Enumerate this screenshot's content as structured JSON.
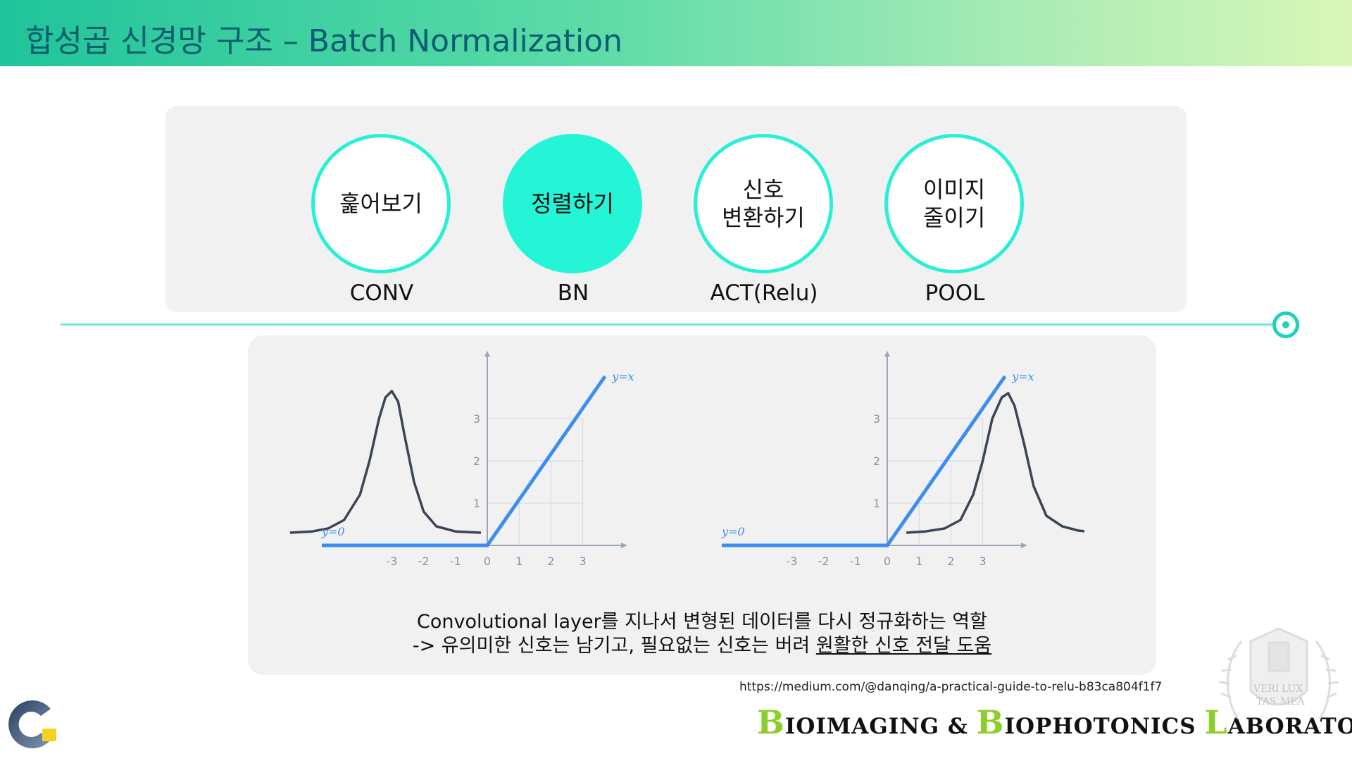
{
  "header": {
    "title": "합성곱 신경망 구조 – Batch Normalization"
  },
  "steps": [
    {
      "text": "훑어보기",
      "label": "CONV",
      "filled": false
    },
    {
      "text": "정렬하기",
      "label": "BN",
      "filled": true
    },
    {
      "text": "신호\n변환하기",
      "label": "ACT(Relu)",
      "filled": false
    },
    {
      "text": "이미지\n줄이기",
      "label": "POOL",
      "filled": false
    }
  ],
  "chart_data": [
    {
      "type": "line",
      "series": [
        {
          "name": "y=x",
          "x": [
            -5.2,
            0,
            3.7
          ],
          "y": [
            0,
            0,
            4
          ]
        },
        {
          "name": "y=0",
          "x": [
            -5.2,
            0
          ],
          "y": [
            0,
            0
          ]
        },
        {
          "x": [
            -6.2,
            -5.5,
            -5.0,
            -4.5,
            -4.0,
            -3.7,
            -3.4,
            -3.2,
            -3.0,
            -2.8,
            -2.6,
            -2.3,
            -2.0,
            -1.6,
            -1.0,
            -0.2
          ],
          "y": [
            0.3,
            0.33,
            0.4,
            0.6,
            1.2,
            2.0,
            3.0,
            3.5,
            3.65,
            3.4,
            2.6,
            1.5,
            0.8,
            0.45,
            0.33,
            0.3
          ]
        }
      ],
      "xticks": [
        -3,
        -2,
        -1,
        0,
        1,
        2,
        3
      ],
      "yticks": [
        1,
        2,
        3
      ],
      "annotations": [
        "y=x",
        "y=0"
      ]
    },
    {
      "type": "line",
      "series": [
        {
          "name": "y=x",
          "x": [
            -5.2,
            0,
            3.7
          ],
          "y": [
            0,
            0,
            4
          ]
        },
        {
          "name": "y=0",
          "x": [
            -5.2,
            0
          ],
          "y": [
            0,
            0
          ]
        },
        {
          "x": [
            0.6,
            1.2,
            1.8,
            2.3,
            2.7,
            3.0,
            3.3,
            3.6,
            3.8,
            4.0,
            4.3,
            4.6,
            5.0,
            5.5,
            6.0,
            6.7
          ],
          "y": [
            0.3,
            0.33,
            0.4,
            0.6,
            1.2,
            2.0,
            3.0,
            3.5,
            3.6,
            3.3,
            2.4,
            1.4,
            0.7,
            0.45,
            0.35,
            0.3
          ]
        }
      ],
      "xticks": [
        -3,
        -2,
        -1,
        0,
        1,
        2,
        3
      ],
      "yticks": [
        1,
        2,
        3
      ],
      "annotations": [
        "y=x",
        "y=0"
      ]
    }
  ],
  "caption": {
    "line1": "Convolutional layer를 지나서 변형된 데이터를 다시 정규화하는 역할",
    "line2_prefix": "-> 유의미한 신호는 남기고, 필요없는 신호는 버려 ",
    "line2_underlined": "원활한 신호 전달 도움"
  },
  "source": "https://medium.com/@danqing/a-practical-guide-to-relu-b83ca804f1f7",
  "lab": {
    "w1_cap": "B",
    "w1_rest": "IOIMAGING &",
    "w2_cap": "B",
    "w2_rest": "IOPHOTONICS",
    "w3_cap": "L",
    "w3_rest": "ABORATORY"
  },
  "seal_text": [
    "VERI",
    "LUX",
    "TAS",
    "MEA"
  ],
  "colors": {
    "accent": "#24f5d6",
    "line": "#3b8ef0",
    "curve": "#3a4557",
    "axis": "#9aa6b8"
  }
}
